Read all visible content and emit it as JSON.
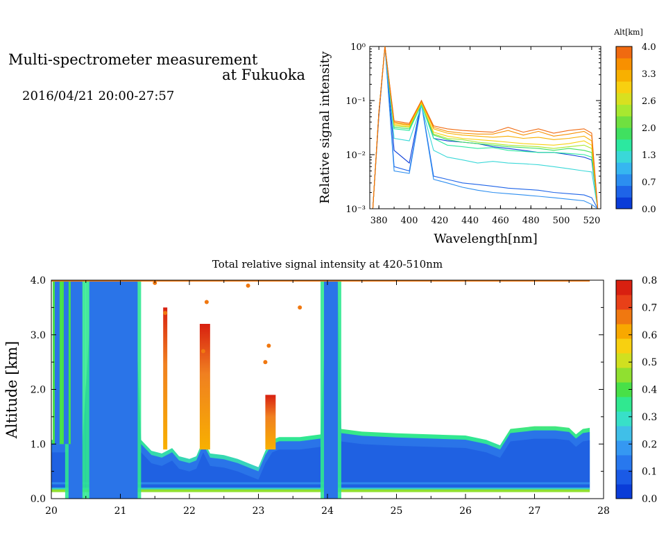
{
  "header": {
    "title_line1": "Multi-spectrometer measurement",
    "title_line2": "at Fukuoka",
    "date_range": "2016/04/21 20:00-27:57"
  },
  "chart_data": [
    {
      "type": "line",
      "title": "",
      "xlabel": "Wavelength[nm]",
      "ylabel": "Relative signal intensity",
      "yscale": "log",
      "xlim": [
        374,
        526
      ],
      "ylim": [
        0.001,
        1
      ],
      "x_ticks": [
        "380",
        "400",
        "420",
        "440",
        "460",
        "480",
        "500",
        "520"
      ],
      "y_ticks": [
        "10⁻³",
        "10⁻²",
        "10⁻¹",
        "10⁰"
      ],
      "x": [
        376,
        380,
        384,
        390,
        400,
        408,
        416,
        425,
        435,
        445,
        455,
        465,
        475,
        485,
        495,
        505,
        515,
        520,
        524
      ],
      "colorbar": {
        "label": "Alt[km]",
        "ticks": [
          "0.0",
          "0.7",
          "1.3",
          "2.0",
          "2.6",
          "3.3",
          "4.0"
        ],
        "colors": [
          "#0a3cd8",
          "#1e64e8",
          "#2c8ef0",
          "#36b6f0",
          "#3ad8d8",
          "#2ce8a0",
          "#40e060",
          "#70e040",
          "#a8e830",
          "#d8e020",
          "#f8d010",
          "#f8b000",
          "#f89000",
          "#f06a10"
        ]
      },
      "series": [
        {
          "color": "#0a3cd8",
          "values": [
            0.001,
            0.05,
            1.0,
            0.012,
            0.007,
            0.1,
            0.02,
            0.018,
            0.017,
            0.016,
            0.014,
            0.013,
            0.012,
            0.011,
            0.011,
            0.01,
            0.009,
            0.008,
            0.001
          ]
        },
        {
          "color": "#1e64e8",
          "values": [
            0.001,
            0.06,
            1.0,
            0.006,
            0.005,
            0.09,
            0.004,
            0.0035,
            0.003,
            0.0028,
            0.0026,
            0.0024,
            0.0023,
            0.0022,
            0.002,
            0.0019,
            0.0018,
            0.0016,
            0.001
          ]
        },
        {
          "color": "#2c8ef0",
          "values": [
            0.001,
            0.06,
            1.0,
            0.005,
            0.0045,
            0.085,
            0.0035,
            0.003,
            0.0025,
            0.0022,
            0.002,
            0.0019,
            0.0018,
            0.0017,
            0.0016,
            0.0015,
            0.0014,
            0.0012,
            0.001
          ]
        },
        {
          "color": "#3ad8d8",
          "values": [
            0.001,
            0.06,
            1.0,
            0.02,
            0.018,
            0.08,
            0.012,
            0.009,
            0.008,
            0.007,
            0.0075,
            0.007,
            0.0068,
            0.0065,
            0.006,
            0.0055,
            0.005,
            0.0048,
            0.001
          ]
        },
        {
          "color": "#2ce8a0",
          "values": [
            0.001,
            0.06,
            1.0,
            0.03,
            0.028,
            0.085,
            0.02,
            0.015,
            0.014,
            0.013,
            0.0135,
            0.012,
            0.0115,
            0.011,
            0.011,
            0.0105,
            0.01,
            0.009,
            0.001
          ]
        },
        {
          "color": "#40e060",
          "values": [
            0.001,
            0.06,
            1.0,
            0.032,
            0.03,
            0.09,
            0.023,
            0.019,
            0.017,
            0.016,
            0.015,
            0.014,
            0.0135,
            0.013,
            0.012,
            0.013,
            0.012,
            0.011,
            0.001
          ]
        },
        {
          "color": "#a8e830",
          "values": [
            0.001,
            0.06,
            1.0,
            0.034,
            0.032,
            0.09,
            0.024,
            0.02,
            0.019,
            0.017,
            0.016,
            0.015,
            0.0145,
            0.014,
            0.013,
            0.014,
            0.015,
            0.013,
            0.001
          ]
        },
        {
          "color": "#f8d010",
          "values": [
            0.001,
            0.06,
            1.0,
            0.036,
            0.033,
            0.09,
            0.026,
            0.022,
            0.02,
            0.019,
            0.018,
            0.017,
            0.016,
            0.0155,
            0.015,
            0.016,
            0.018,
            0.015,
            0.001
          ]
        },
        {
          "color": "#f8b000",
          "values": [
            0.001,
            0.06,
            1.0,
            0.038,
            0.035,
            0.095,
            0.03,
            0.025,
            0.023,
            0.022,
            0.021,
            0.022,
            0.02,
            0.021,
            0.019,
            0.02,
            0.022,
            0.018,
            0.001
          ]
        },
        {
          "color": "#f89000",
          "values": [
            0.001,
            0.06,
            1.0,
            0.04,
            0.036,
            0.1,
            0.032,
            0.027,
            0.025,
            0.024,
            0.024,
            0.028,
            0.023,
            0.027,
            0.022,
            0.024,
            0.027,
            0.022,
            0.001
          ]
        },
        {
          "color": "#f06a10",
          "values": [
            0.001,
            0.06,
            1.0,
            0.042,
            0.038,
            0.1,
            0.034,
            0.03,
            0.028,
            0.027,
            0.026,
            0.032,
            0.026,
            0.03,
            0.025,
            0.028,
            0.03,
            0.025,
            0.001
          ]
        }
      ]
    },
    {
      "type": "heatmap",
      "title": "Total relative signal intensity at 420-510nm",
      "xlabel": "",
      "ylabel": "Altitude [km]",
      "xlim": [
        20,
        28
      ],
      "ylim": [
        0,
        4
      ],
      "x_ticks": [
        "20",
        "21",
        "22",
        "23",
        "24",
        "25",
        "26",
        "27",
        "28"
      ],
      "y_ticks": [
        "0.0",
        "1.0",
        "2.0",
        "3.0",
        "4.0"
      ],
      "colorbar": {
        "ticks": [
          "0.0",
          "0.1",
          "0.2",
          "0.3",
          "0.4",
          "0.5",
          "0.6",
          "0.7",
          "0.8"
        ],
        "colors": [
          "#0a3cd8",
          "#1a5ae6",
          "#2878ee",
          "#3598f2",
          "#40bfe8",
          "#38e0c8",
          "#30e890",
          "#48e048",
          "#90e030",
          "#d0e020",
          "#f8d010",
          "#f8a800",
          "#f07810",
          "#e84018",
          "#d82010"
        ]
      },
      "cloud_base_km": [
        [
          20.0,
          1.0
        ],
        [
          20.15,
          1.0
        ],
        [
          20.3,
          1.0
        ],
        [
          20.45,
          1.0
        ],
        [
          20.6,
          4.0
        ],
        [
          21.0,
          4.0
        ],
        [
          21.2,
          4.0
        ],
        [
          21.3,
          1.0
        ],
        [
          21.45,
          0.8
        ],
        [
          21.6,
          0.75
        ],
        [
          21.75,
          0.85
        ],
        [
          21.85,
          0.7
        ],
        [
          22.0,
          0.65
        ],
        [
          22.1,
          0.7
        ],
        [
          22.2,
          1.0
        ],
        [
          22.3,
          0.75
        ],
        [
          22.5,
          0.72
        ],
        [
          22.7,
          0.65
        ],
        [
          22.9,
          0.55
        ],
        [
          23.0,
          0.5
        ],
        [
          23.1,
          0.8
        ],
        [
          23.2,
          1.0
        ],
        [
          23.3,
          1.05
        ],
        [
          23.6,
          1.05
        ],
        [
          23.9,
          1.1
        ],
        [
          24.0,
          4.0
        ],
        [
          24.15,
          4.0
        ],
        [
          24.2,
          1.2
        ],
        [
          24.5,
          1.15
        ],
        [
          25.0,
          1.12
        ],
        [
          25.5,
          1.1
        ],
        [
          26.0,
          1.08
        ],
        [
          26.3,
          1.0
        ],
        [
          26.5,
          0.9
        ],
        [
          26.65,
          1.2
        ],
        [
          27.0,
          1.25
        ],
        [
          27.3,
          1.25
        ],
        [
          27.5,
          1.22
        ],
        [
          27.6,
          1.1
        ],
        [
          27.7,
          1.2
        ],
        [
          27.8,
          1.22
        ]
      ]
    }
  ]
}
